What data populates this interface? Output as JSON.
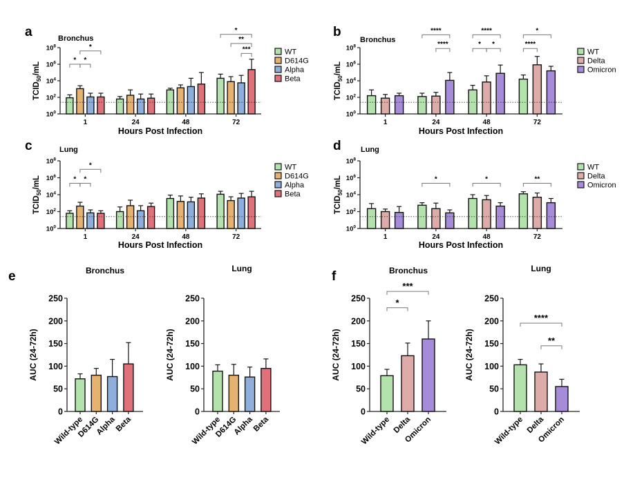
{
  "colors": {
    "WT": "#b4e2ad",
    "D614G": "#e5b26f",
    "Alpha": "#8eaedb",
    "Beta": "#e07079",
    "Delta": "#ddaca8",
    "Omicron": "#a68bd8",
    "Wild-type": "#b4e2ad"
  },
  "chart_data": [
    {
      "id": "a",
      "type": "bar",
      "panel_label": "a",
      "title": "Bronchus",
      "scale": "log10",
      "ylabel_main": "TCID",
      "ylabel_sub": "50",
      "ylabel_suffix": "/mL",
      "xlabel": "Hours Post Infection",
      "ylim_log10": [
        0,
        8
      ],
      "yticks": [
        {
          "base": "10",
          "exp": "0",
          "v": 0
        },
        {
          "base": "10",
          "exp": "2",
          "v": 2
        },
        {
          "base": "10",
          "exp": "4",
          "v": 4
        },
        {
          "base": "10",
          "exp": "6",
          "v": 6
        },
        {
          "base": "10",
          "exp": "8",
          "v": 8
        }
      ],
      "lod_log10": 1.4,
      "categories": [
        "1",
        "24",
        "48",
        "72"
      ],
      "series": [
        {
          "name": "WT",
          "log10_mean": [
            1.95,
            1.8,
            2.9,
            4.3
          ],
          "log10_err_top": [
            2.3,
            2.1,
            3.1,
            4.8
          ]
        },
        {
          "name": "D614G",
          "log10_mean": [
            3.05,
            2.25,
            3.15,
            3.9
          ],
          "log10_err_top": [
            3.4,
            2.9,
            3.5,
            4.5
          ]
        },
        {
          "name": "Alpha",
          "log10_mean": [
            2.05,
            1.8,
            3.3,
            3.75
          ],
          "log10_err_top": [
            2.5,
            2.4,
            4.3,
            4.65
          ]
        },
        {
          "name": "Beta",
          "log10_mean": [
            2.05,
            1.9,
            3.6,
            5.35
          ],
          "log10_err_top": [
            2.5,
            2.4,
            5.0,
            6.6
          ]
        }
      ],
      "brackets": [
        {
          "group": 0,
          "from": 0,
          "to": 1,
          "label": "*",
          "y_log10": 6.0
        },
        {
          "group": 0,
          "from": 1,
          "to": 2,
          "label": "*",
          "y_log10": 6.0
        },
        {
          "group": 0,
          "from": 1,
          "to": 3,
          "label": "*",
          "y_log10": 7.6
        },
        {
          "group": 3,
          "from": 2,
          "to": 3,
          "label": "***",
          "y_log10": 7.3
        },
        {
          "group": 3,
          "from": 1,
          "to": 3,
          "label": "**",
          "y_log10": 8.5
        },
        {
          "group": 3,
          "from": 0,
          "to": 3,
          "label": "*",
          "y_log10": 9.6
        }
      ],
      "legend": [
        "WT",
        "D614G",
        "Alpha",
        "Beta"
      ],
      "legend_position": "right"
    },
    {
      "id": "b",
      "type": "bar",
      "panel_label": "b",
      "title": "Bronchus",
      "scale": "log10",
      "ylabel_main": "TCID",
      "ylabel_sub": "50",
      "ylabel_suffix": "/mL",
      "xlabel": "Hours Post Infection",
      "ylim_log10": [
        0,
        8
      ],
      "yticks": [
        {
          "base": "10",
          "exp": "0",
          "v": 0
        },
        {
          "base": "10",
          "exp": "2",
          "v": 2
        },
        {
          "base": "10",
          "exp": "4",
          "v": 4
        },
        {
          "base": "10",
          "exp": "6",
          "v": 6
        },
        {
          "base": "10",
          "exp": "8",
          "v": 8
        }
      ],
      "lod_log10": 1.4,
      "categories": [
        "1",
        "24",
        "48",
        "72"
      ],
      "series": [
        {
          "name": "WT",
          "log10_mean": [
            2.2,
            2.1,
            2.9,
            4.2
          ],
          "log10_err_top": [
            2.9,
            2.5,
            3.45,
            4.7
          ]
        },
        {
          "name": "Delta",
          "log10_mean": [
            1.9,
            2.15,
            3.85,
            5.93
          ],
          "log10_err_top": [
            2.35,
            2.6,
            4.6,
            6.94
          ]
        },
        {
          "name": "Omicron",
          "log10_mean": [
            2.2,
            4.05,
            4.9,
            5.2
          ],
          "log10_err_top": [
            2.5,
            5.0,
            5.9,
            5.75
          ]
        }
      ],
      "brackets": [
        {
          "group": 1,
          "from": 1,
          "to": 2,
          "label": "****",
          "y_log10": 7.9
        },
        {
          "group": 1,
          "from": 0,
          "to": 2,
          "label": "****",
          "y_log10": 9.55
        },
        {
          "group": 2,
          "from": 0,
          "to": 1,
          "label": "*",
          "y_log10": 7.9
        },
        {
          "group": 2,
          "from": 1,
          "to": 2,
          "label": "*",
          "y_log10": 7.9
        },
        {
          "group": 2,
          "from": 0,
          "to": 2,
          "label": "****",
          "y_log10": 9.55
        },
        {
          "group": 3,
          "from": 0,
          "to": 1,
          "label": "****",
          "y_log10": 7.9
        },
        {
          "group": 3,
          "from": 0,
          "to": 2,
          "label": "*",
          "y_log10": 9.55
        }
      ],
      "legend": [
        "WT",
        "Delta",
        "Omicron"
      ],
      "legend_position": "right"
    },
    {
      "id": "c",
      "type": "bar",
      "panel_label": "c",
      "title": "Lung",
      "scale": "log10",
      "ylabel_main": "TCID",
      "ylabel_sub": "50",
      "ylabel_suffix": "/mL",
      "xlabel": "Hours Post Infection",
      "ylim_log10": [
        0,
        8
      ],
      "yticks": [
        {
          "base": "10",
          "exp": "0",
          "v": 0
        },
        {
          "base": "10",
          "exp": "2",
          "v": 2
        },
        {
          "base": "10",
          "exp": "4",
          "v": 4
        },
        {
          "base": "10",
          "exp": "6",
          "v": 6
        },
        {
          "base": "10",
          "exp": "8",
          "v": 8
        }
      ],
      "lod_log10": 1.4,
      "categories": [
        "1",
        "24",
        "48",
        "72"
      ],
      "series": [
        {
          "name": "WT",
          "log10_mean": [
            1.8,
            2.0,
            3.55,
            4.05
          ],
          "log10_err_top": [
            2.1,
            2.55,
            3.95,
            4.4
          ]
        },
        {
          "name": "D614G",
          "log10_mean": [
            2.65,
            2.7,
            3.2,
            3.3
          ],
          "log10_err_top": [
            3.1,
            3.35,
            3.85,
            3.75
          ]
        },
        {
          "name": "Alpha",
          "log10_mean": [
            1.85,
            2.1,
            3.15,
            3.6
          ],
          "log10_err_top": [
            2.2,
            2.7,
            3.7,
            4.15
          ]
        },
        {
          "name": "Beta",
          "log10_mean": [
            1.8,
            2.6,
            3.6,
            3.75
          ],
          "log10_err_top": [
            2.1,
            3.0,
            4.1,
            4.4
          ]
        }
      ],
      "brackets": [
        {
          "group": 0,
          "from": 0,
          "to": 1,
          "label": "*",
          "y_log10": 5.35
        },
        {
          "group": 0,
          "from": 1,
          "to": 2,
          "label": "*",
          "y_log10": 5.35
        },
        {
          "group": 0,
          "from": 1,
          "to": 3,
          "label": "*",
          "y_log10": 7.0
        }
      ],
      "legend": [
        "WT",
        "D614G",
        "Alpha",
        "Beta"
      ],
      "legend_position": "right"
    },
    {
      "id": "d",
      "type": "bar",
      "panel_label": "d",
      "title": "Lung",
      "scale": "log10",
      "ylabel_main": "TCID",
      "ylabel_sub": "50",
      "ylabel_suffix": "/mL",
      "xlabel": "Hours Post Infection",
      "ylim_log10": [
        0,
        8
      ],
      "yticks": [
        {
          "base": "10",
          "exp": "0",
          "v": 0
        },
        {
          "base": "10",
          "exp": "2",
          "v": 2
        },
        {
          "base": "10",
          "exp": "4",
          "v": 4
        },
        {
          "base": "10",
          "exp": "6",
          "v": 6
        },
        {
          "base": "10",
          "exp": "8",
          "v": 8
        }
      ],
      "lod_log10": 1.4,
      "categories": [
        "1",
        "24",
        "48",
        "72"
      ],
      "series": [
        {
          "name": "WT",
          "log10_mean": [
            2.35,
            2.75,
            3.55,
            4.1
          ],
          "log10_err_top": [
            2.95,
            3.05,
            4.0,
            4.35
          ]
        },
        {
          "name": "Delta",
          "log10_mean": [
            2.0,
            2.35,
            3.4,
            3.7
          ],
          "log10_err_top": [
            2.3,
            3.0,
            3.9,
            4.2
          ]
        },
        {
          "name": "Omicron",
          "log10_mean": [
            1.9,
            1.85,
            2.65,
            3.05
          ],
          "log10_err_top": [
            2.6,
            2.2,
            3.05,
            3.55
          ]
        }
      ],
      "brackets": [
        {
          "group": 1,
          "from": 0,
          "to": 2,
          "label": "*",
          "y_log10": 5.35
        },
        {
          "group": 2,
          "from": 0,
          "to": 2,
          "label": "*",
          "y_log10": 5.35
        },
        {
          "group": 3,
          "from": 0,
          "to": 2,
          "label": "**",
          "y_log10": 5.35
        }
      ],
      "legend": [
        "WT",
        "Delta",
        "Omicron"
      ],
      "legend_position": "right"
    },
    {
      "id": "e1",
      "type": "bar",
      "panel_label": "e",
      "title": "Bronchus",
      "scale": "linear",
      "ylabel": "AUC (24-72h)",
      "ylim": [
        0,
        250
      ],
      "yticks": [
        "0",
        "50",
        "100",
        "150",
        "200",
        "250"
      ],
      "categories": [
        "Wild-type",
        "D614G",
        "Alpha",
        "Beta"
      ],
      "color_keys": [
        "WT",
        "D614G",
        "Alpha",
        "Beta"
      ],
      "values": [
        72,
        80,
        77,
        105
      ],
      "err_top": [
        83,
        95,
        115,
        152
      ],
      "brackets": []
    },
    {
      "id": "e2",
      "type": "bar",
      "title": "Lung",
      "scale": "linear",
      "ylabel": "AUC (24-72h)",
      "ylim": [
        0,
        250
      ],
      "yticks": [
        "0",
        "50",
        "100",
        "150",
        "200",
        "250"
      ],
      "categories": [
        "Wild-type",
        "D614G",
        "Alpha",
        "Beta"
      ],
      "color_keys": [
        "WT",
        "D614G",
        "Alpha",
        "Beta"
      ],
      "values": [
        89,
        80,
        76,
        95
      ],
      "err_top": [
        103,
        104,
        98,
        116
      ],
      "brackets": []
    },
    {
      "id": "f1",
      "type": "bar",
      "panel_label": "f",
      "title": "Bronchus",
      "scale": "linear",
      "ylabel": "AUC (24-72h)",
      "ylim": [
        0,
        250
      ],
      "yticks": [
        "0",
        "50",
        "100",
        "150",
        "200",
        "250"
      ],
      "categories": [
        "Wild-type",
        "Delta",
        "Omicron"
      ],
      "color_keys": [
        "WT",
        "Delta",
        "Omicron"
      ],
      "values": [
        79,
        123,
        160
      ],
      "err_top": [
        93,
        151,
        200
      ],
      "brackets": [
        {
          "from": 0,
          "to": 1,
          "label": "*",
          "y": 229
        },
        {
          "from": 0,
          "to": 2,
          "label": "***",
          "y": 265
        }
      ]
    },
    {
      "id": "f2",
      "type": "bar",
      "title": "Lung",
      "scale": "linear",
      "ylabel": "AUC (24-72h)",
      "ylim": [
        0,
        250
      ],
      "yticks": [
        "0",
        "50",
        "100",
        "150",
        "200",
        "250"
      ],
      "categories": [
        "Wild-type",
        "Delta",
        "Omicron"
      ],
      "color_keys": [
        "WT",
        "Delta",
        "Omicron"
      ],
      "values": [
        103,
        87,
        55
      ],
      "err_top": [
        115,
        105,
        71
      ],
      "brackets": [
        {
          "from": 0,
          "to": 2,
          "label": "****",
          "y": 195
        },
        {
          "from": 1,
          "to": 2,
          "label": "**",
          "y": 145
        }
      ]
    }
  ]
}
